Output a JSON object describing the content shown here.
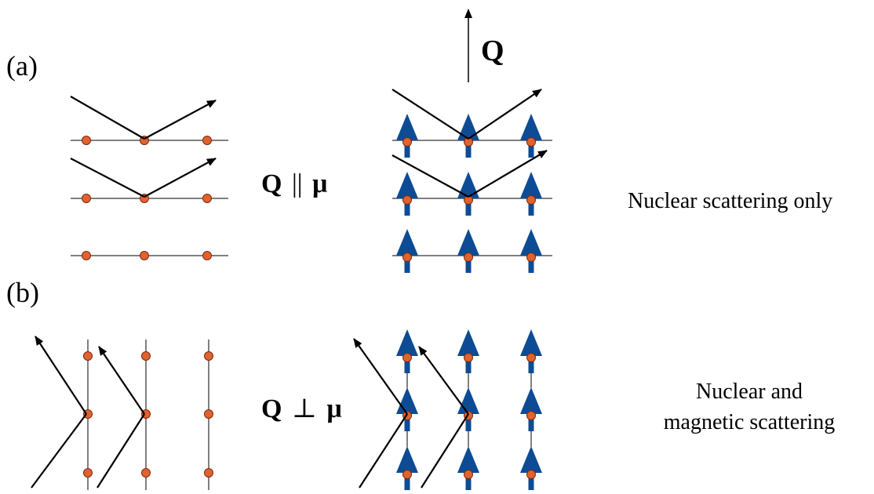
{
  "panel_a": {
    "label": "(a)",
    "condition": {
      "Q": "Q",
      "relation": "||",
      "mu": "μ"
    },
    "description": "Nuclear scattering only"
  },
  "panel_b": {
    "label": "(b)",
    "condition": {
      "Q": "Q",
      "relation": "⊥",
      "mu": "μ"
    },
    "description_lines": [
      "Nuclear and",
      "magnetic scattering"
    ]
  },
  "q_vector_label": "Q",
  "colors": {
    "atom_fill": "#e0622e",
    "atom_stroke": "#7a2a10",
    "spin_arrow": "#0d4c94",
    "lines": "#000000"
  }
}
